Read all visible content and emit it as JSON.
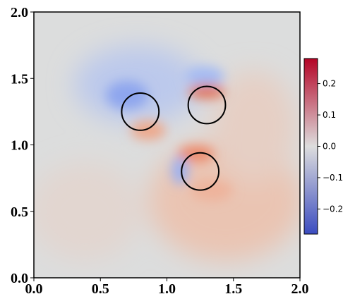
{
  "chart_data": {
    "type": "field",
    "xlim": [
      0,
      2
    ],
    "ylim": [
      0,
      2
    ],
    "xticks": [
      {
        "value": 0,
        "label": "0.0"
      },
      {
        "value": 0.5,
        "label": "0.5"
      },
      {
        "value": 1,
        "label": "1.0"
      },
      {
        "value": 1.5,
        "label": "1.5"
      },
      {
        "value": 2,
        "label": "2.0"
      }
    ],
    "yticks": [
      {
        "value": 0,
        "label": "0.0"
      },
      {
        "value": 0.5,
        "label": "0.5"
      },
      {
        "value": 1,
        "label": "1.0"
      },
      {
        "value": 1.5,
        "label": "1.5"
      },
      {
        "value": 2,
        "label": "2.0"
      }
    ],
    "circles": [
      {
        "x": 0.8,
        "y": 1.25,
        "r": 0.14
      },
      {
        "x": 1.3,
        "y": 1.3,
        "r": 0.14
      },
      {
        "x": 1.25,
        "y": 0.8,
        "r": 0.14
      }
    ],
    "circle_color": "#000000",
    "colorbar": {
      "lim": [
        -0.28,
        0.28
      ],
      "colors": [
        "#3b4cc0",
        "#dddddd",
        "#b40426"
      ],
      "ticks": [
        {
          "value": -0.2,
          "label": "−0.2"
        },
        {
          "value": -0.1,
          "label": "−0.1"
        },
        {
          "value": 0,
          "label": "0.0"
        },
        {
          "value": 0.1,
          "label": "0.1"
        },
        {
          "value": 0.2,
          "label": "0.2"
        }
      ]
    }
  }
}
